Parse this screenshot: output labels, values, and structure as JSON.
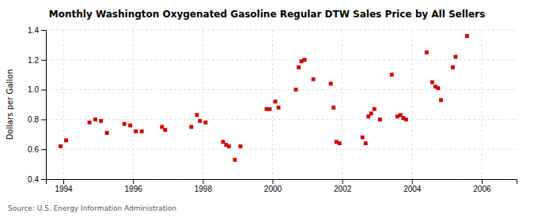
{
  "chart_data": {
    "type": "scatter",
    "title": "Monthly Washington Oxygenated Gasoline Regular DTW Sales Price by All Sellers",
    "y_label": "Dollars per Gallon",
    "source": "Source: U.S. Energy Information Administration",
    "color": "#cc0000",
    "marker": "square",
    "grid": true,
    "xlim": [
      1993.5,
      2007.0
    ],
    "ylim": [
      0.4,
      1.4
    ],
    "xticks": [
      1994,
      1996,
      1998,
      2000,
      2002,
      2004,
      2006
    ],
    "yticks": [
      0.4,
      0.6,
      0.8,
      {
        "value": 1.0,
        "label": "1.0"
      },
      1.2,
      1.4
    ],
    "x": [
      1993.92,
      1994.08,
      1994.75,
      1994.92,
      1995.08,
      1995.25,
      1995.75,
      1995.92,
      1996.08,
      1996.25,
      1996.83,
      1996.92,
      1997.67,
      1997.83,
      1997.92,
      1998.08,
      1998.58,
      1998.67,
      1998.75,
      1998.92,
      1999.08,
      1999.83,
      1999.92,
      2000.08,
      2000.17,
      2000.67,
      2000.75,
      2000.83,
      2000.92,
      2001.17,
      2001.67,
      2001.75,
      2001.83,
      2001.92,
      2002.58,
      2002.67,
      2002.75,
      2002.83,
      2002.92,
      2003.08,
      2003.42,
      2003.58,
      2003.67,
      2003.75,
      2003.83,
      2004.42,
      2004.58,
      2004.67,
      2004.75,
      2004.83,
      2005.17,
      2005.25,
      2005.58
    ],
    "values": [
      0.62,
      0.66,
      0.78,
      0.8,
      0.79,
      0.71,
      0.77,
      0.76,
      0.72,
      0.72,
      0.75,
      0.73,
      0.75,
      0.83,
      0.79,
      0.78,
      0.65,
      0.63,
      0.62,
      0.53,
      0.62,
      0.87,
      0.87,
      0.92,
      0.88,
      1.0,
      1.15,
      1.19,
      1.2,
      1.07,
      1.04,
      0.88,
      0.65,
      0.64,
      0.68,
      0.64,
      0.82,
      0.84,
      0.87,
      0.8,
      1.1,
      0.82,
      0.83,
      0.81,
      0.8,
      1.25,
      1.05,
      1.02,
      1.01,
      0.93,
      1.15,
      1.22,
      1.36
    ]
  }
}
